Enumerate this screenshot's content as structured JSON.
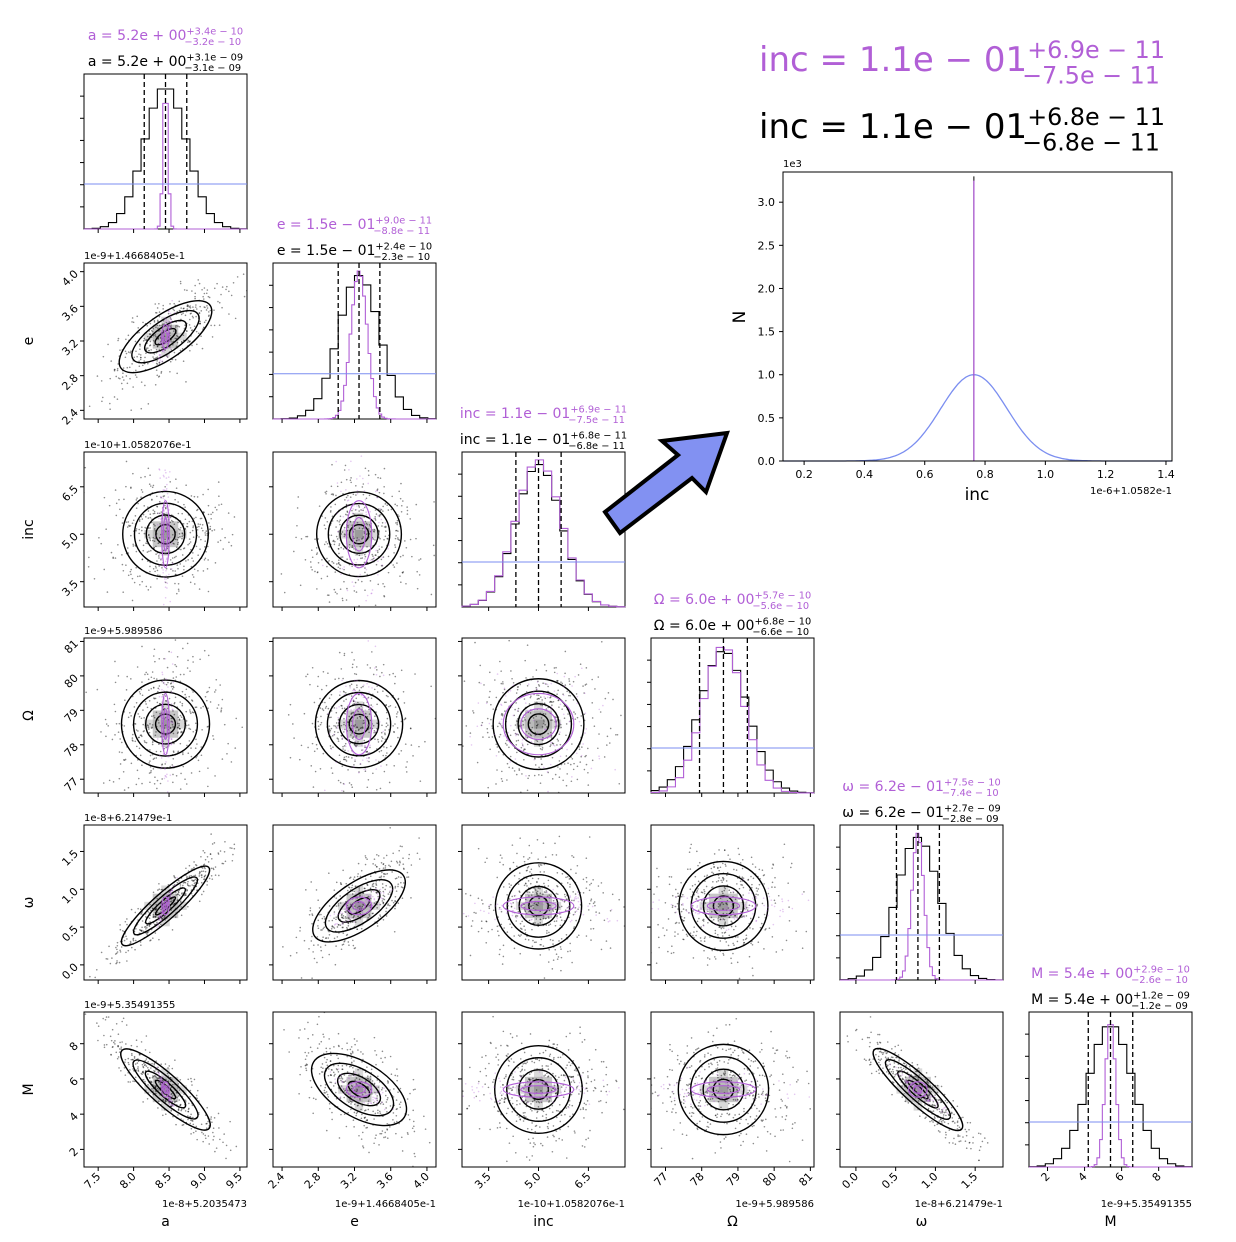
{
  "chart_data": [
    {
      "type": "corner",
      "parameters": [
        {
          "key": "a",
          "label": "a",
          "center": 8.45,
          "tick_values": [
            7.5,
            8.0,
            8.5,
            9.0,
            9.5
          ],
          "tick_labels": [
            "7.5",
            "8.0",
            "8.5",
            "9.0",
            "9.5"
          ],
          "range": [
            7.3,
            9.6
          ],
          "offset_text": "1e-8+5.2035473"
        },
        {
          "key": "e",
          "label": "e",
          "center": 3.25,
          "tick_values": [
            2.4,
            2.8,
            3.2,
            3.6,
            4.0
          ],
          "tick_labels": [
            "2.4",
            "2.8",
            "3.2",
            "3.6",
            "4.0"
          ],
          "range": [
            2.3,
            4.1
          ],
          "offset_text": "1e-9+1.4668405e-1"
        },
        {
          "key": "inc",
          "label": "inc",
          "center": 5.0,
          "tick_values": [
            3.5,
            5.0,
            6.5
          ],
          "tick_labels": [
            "3.5",
            "5.0",
            "6.5"
          ],
          "range": [
            2.7,
            7.6
          ],
          "offset_text": "1e-10+1.0582076e-1"
        },
        {
          "key": "Omega",
          "label": "Ω",
          "center": 78.6,
          "tick_values": [
            77,
            78,
            79,
            80,
            81
          ],
          "tick_labels": [
            "77",
            "78",
            "79",
            "80",
            "81"
          ],
          "range": [
            76.6,
            81.1
          ],
          "offset_text": "1e-9+5.989586"
        },
        {
          "key": "omega",
          "label": "ω",
          "center": 0.78,
          "tick_values": [
            0.0,
            0.5,
            1.0,
            1.5
          ],
          "tick_labels": [
            "0.0",
            "0.5",
            "1.0",
            "1.5"
          ],
          "range": [
            -0.2,
            1.85
          ],
          "offset_text": "1e-8+6.21479e-1"
        },
        {
          "key": "M",
          "label": "M",
          "center": 5.4,
          "tick_values": [
            2,
            4,
            6,
            8
          ],
          "tick_labels": [
            "2",
            "4",
            "6",
            "8"
          ],
          "range": [
            1.0,
            9.8
          ],
          "offset_text": "1e-9+5.35491355"
        }
      ],
      "black_titles": [
        {
          "prefix": "a = 5.2e + 00",
          "sup": "+3.1e − 09",
          "sub": "−3.1e − 09"
        },
        {
          "prefix": "e = 1.5e − 01",
          "sup": "+2.4e − 10",
          "sub": "−2.3e − 10"
        },
        {
          "prefix": "inc = 1.1e − 01",
          "sup": "+6.8e − 11",
          "sub": "−6.8e − 11"
        },
        {
          "prefix": "Ω = 6.0e + 00",
          "sup": "+6.8e − 10",
          "sub": "−6.6e − 10"
        },
        {
          "prefix": "ω = 6.2e − 01",
          "sup": "+2.7e − 09",
          "sub": "−2.8e − 09"
        },
        {
          "prefix": "M = 5.4e + 00",
          "sup": "+1.2e − 09",
          "sub": "−1.2e − 09"
        }
      ],
      "purple_titles": [
        {
          "prefix": "a = 5.2e + 00",
          "sup": "+3.4e − 10",
          "sub": "−3.2e − 10"
        },
        {
          "prefix": "e = 1.5e − 01",
          "sup": "+9.0e − 11",
          "sub": "−8.8e − 11"
        },
        {
          "prefix": "inc = 1.1e − 01",
          "sup": "+6.9e − 11",
          "sub": "−7.5e − 11"
        },
        {
          "prefix": "Ω = 6.0e + 00",
          "sup": "+5.7e − 10",
          "sub": "−5.6e − 10"
        },
        {
          "prefix": "ω = 6.2e − 01",
          "sup": "+7.5e − 10",
          "sub": "−7.4e − 10"
        },
        {
          "prefix": "M = 5.4e + 00",
          "sup": "+2.9e − 10",
          "sub": "−2.6e − 10"
        }
      ],
      "colors": {
        "black": "#000000",
        "purple": "#b15fd6",
        "prior": "#7b8ef0",
        "arrow_fill": "#8291f2"
      }
    },
    {
      "type": "line",
      "title_black": {
        "prefix": "inc = 1.1e − 01",
        "sup": "+6.8e − 11",
        "sub": "−6.8e − 11"
      },
      "title_purple": {
        "prefix": "inc = 1.1e − 01",
        "sup": "+6.9e − 11",
        "sub": "−7.5e − 11"
      },
      "xlabel": "inc",
      "ylabel": "N",
      "x_offset_text": "1e-6+1.0582e-1",
      "y_offset_text": "1e3",
      "xlim": [
        0.13,
        1.42
      ],
      "ylim": [
        0,
        3.35
      ],
      "x_ticks": [
        0.2,
        0.4,
        0.6,
        0.8,
        1.0,
        1.2,
        1.4
      ],
      "x_tick_labels": [
        "0.2",
        "0.4",
        "0.6",
        "0.8",
        "1.0",
        "1.2",
        "1.4"
      ],
      "y_ticks": [
        0.0,
        0.5,
        1.0,
        1.5,
        2.0,
        2.5,
        3.0
      ],
      "y_tick_labels": [
        "0.0",
        "0.5",
        "1.0",
        "1.5",
        "2.0",
        "2.5",
        "3.0"
      ],
      "gaussian": {
        "mean": 0.763,
        "sigma": 0.11,
        "peak": 1.0
      },
      "spike": {
        "x": 0.763,
        "black_height": 3.3,
        "purple_height": 3.25
      }
    }
  ]
}
